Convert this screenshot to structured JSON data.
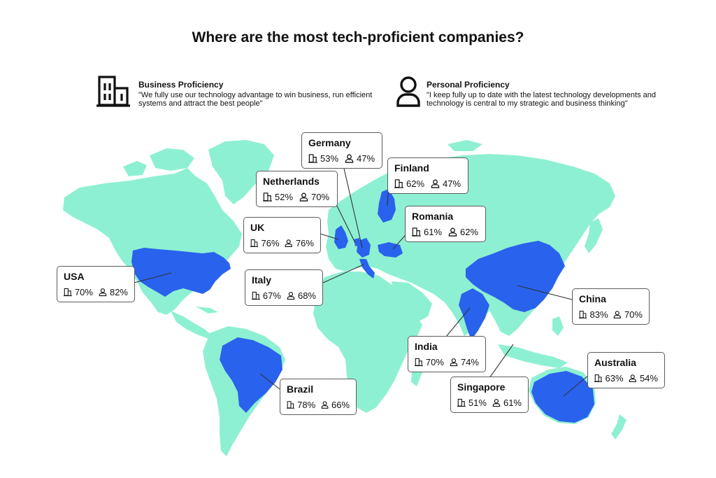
{
  "title": "Where are the most tech-proficient companies?",
  "legend": {
    "business": {
      "title": "Business Proficiency",
      "description": "\"We fully use our technology advantage to win business, run efficient systems and attract the best people\"",
      "icon": "building-icon"
    },
    "personal": {
      "title": "Personal Proficiency",
      "description": "\"I keep fully up to date with the latest technology developments and technology is central to my strategic and business thinking\"",
      "icon": "person-icon"
    }
  },
  "colors": {
    "land": "#8ef0d2",
    "highlight": "#2962ec",
    "border": "#5c5c5c",
    "leader": "#333333"
  },
  "countries": [
    {
      "id": "germany",
      "name": "Germany",
      "business": "53%",
      "personal": "47%"
    },
    {
      "id": "finland",
      "name": "Finland",
      "business": "62%",
      "personal": "47%"
    },
    {
      "id": "netherlands",
      "name": "Netherlands",
      "business": "52%",
      "personal": "70%"
    },
    {
      "id": "romania",
      "name": "Romania",
      "business": "61%",
      "personal": "62%"
    },
    {
      "id": "uk",
      "name": "UK",
      "business": "76%",
      "personal": "76%"
    },
    {
      "id": "usa",
      "name": "USA",
      "business": "70%",
      "personal": "82%"
    },
    {
      "id": "italy",
      "name": "Italy",
      "business": "67%",
      "personal": "68%"
    },
    {
      "id": "china",
      "name": "China",
      "business": "83%",
      "personal": "70%"
    },
    {
      "id": "india",
      "name": "India",
      "business": "70%",
      "personal": "74%"
    },
    {
      "id": "australia",
      "name": "Australia",
      "business": "63%",
      "personal": "54%"
    },
    {
      "id": "singapore",
      "name": "Singapore",
      "business": "51%",
      "personal": "61%"
    },
    {
      "id": "brazil",
      "name": "Brazil",
      "business": "78%",
      "personal": "66%"
    }
  ]
}
